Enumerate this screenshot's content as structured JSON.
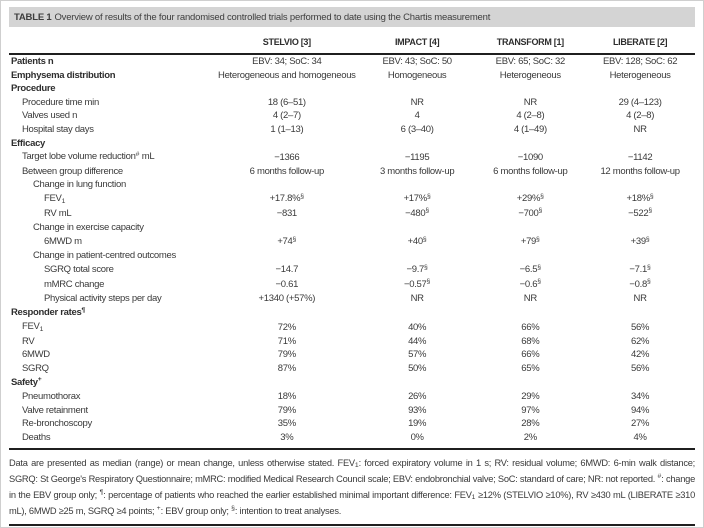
{
  "colors": {
    "page-bg": "#ffffff",
    "title-bar-bg": "#d4d4d4",
    "text": "#3a3a3a",
    "rule": "#1f1f1f"
  },
  "table": {
    "title_prefix": "TABLE 1",
    "title_rest": "Overview of results of the four randomised controlled trials performed to date using the Chartis measurement",
    "columns": [
      "STELVIO [3]",
      "IMPACT [4]",
      "TRANSFORM [1]",
      "LIBERATE [2]"
    ],
    "rows": [
      {
        "label": "Patients n",
        "level": 0,
        "bold": true,
        "values": [
          "EBV: 34; SoC: 34",
          "EBV: 43; SoC: 50",
          "EBV: 65; SoC: 32",
          "EBV: 128; SoC: 62"
        ]
      },
      {
        "label": "Emphysema distribution",
        "level": 0,
        "bold": true,
        "values": [
          "Heterogeneous and homogeneous",
          "Homogeneous",
          "Heterogeneous",
          "Heterogeneous"
        ]
      },
      {
        "label": "Procedure",
        "level": 0,
        "bold": true,
        "values": [
          "",
          "",
          "",
          ""
        ]
      },
      {
        "label": "Procedure time min",
        "level": 1,
        "bold": false,
        "values": [
          "18 (6–51)",
          "NR",
          "NR",
          "29 (4–123)"
        ]
      },
      {
        "label": "Valves used n",
        "level": 1,
        "bold": false,
        "values": [
          "4 (2–7)",
          "4",
          "4 (2–8)",
          "4 (2–8)"
        ]
      },
      {
        "label": "Hospital stay days",
        "level": 1,
        "bold": false,
        "values": [
          "1 (1–13)",
          "6 (3–40)",
          "4 (1–49)",
          "NR"
        ]
      },
      {
        "label": "Efficacy",
        "level": 0,
        "bold": true,
        "values": [
          "",
          "",
          "",
          ""
        ]
      },
      {
        "label": "Target lobe volume reduction^# mL",
        "level": 1,
        "bold": false,
        "values": [
          "−1366",
          "−1195",
          "−1090",
          "−1142"
        ]
      },
      {
        "label": "Between group difference",
        "level": 1,
        "bold": false,
        "values": [
          "6 months follow-up",
          "3 months follow-up",
          "6 months follow-up",
          "12 months follow-up"
        ]
      },
      {
        "label": "Change in lung function",
        "level": 2,
        "bold": false,
        "values": [
          "",
          "",
          "",
          ""
        ]
      },
      {
        "label": "FEV~1",
        "level": 3,
        "bold": false,
        "values": [
          "+17.8%^§",
          "+17%^§",
          "+29%^§",
          "+18%^§"
        ]
      },
      {
        "label": "RV mL",
        "level": 3,
        "bold": false,
        "values": [
          "−831",
          "−480^§",
          "−700^§",
          "−522^§"
        ]
      },
      {
        "label": "Change in exercise capacity",
        "level": 2,
        "bold": false,
        "values": [
          "",
          "",
          "",
          ""
        ]
      },
      {
        "label": "6MWD m",
        "level": 3,
        "bold": false,
        "values": [
          "+74^§",
          "+40^§",
          "+79^§",
          "+39^§"
        ]
      },
      {
        "label": "Change in patient-centred outcomes",
        "level": 2,
        "bold": false,
        "values": [
          "",
          "",
          "",
          ""
        ]
      },
      {
        "label": "SGRQ total score",
        "level": 3,
        "bold": false,
        "values": [
          "−14.7",
          "−9.7^§",
          "−6.5^§",
          "−7.1^§"
        ]
      },
      {
        "label": "mMRC change",
        "level": 3,
        "bold": false,
        "values": [
          "−0.61",
          "−0.57^§",
          "−0.6^§",
          "−0.8^§"
        ]
      },
      {
        "label": "Physical activity steps per day",
        "level": 3,
        "bold": false,
        "values": [
          "+1340 (+57%)",
          "NR",
          "NR",
          "NR"
        ]
      },
      {
        "label": "Responder rates^¶",
        "level": 0,
        "bold": true,
        "values": [
          "",
          "",
          "",
          ""
        ]
      },
      {
        "label": "FEV~1",
        "level": 1,
        "bold": false,
        "values": [
          "72%",
          "40%",
          "66%",
          "56%"
        ]
      },
      {
        "label": "RV",
        "level": 1,
        "bold": false,
        "values": [
          "71%",
          "44%",
          "68%",
          "62%"
        ]
      },
      {
        "label": "6MWD",
        "level": 1,
        "bold": false,
        "values": [
          "79%",
          "57%",
          "66%",
          "42%"
        ]
      },
      {
        "label": "SGRQ",
        "level": 1,
        "bold": false,
        "values": [
          "87%",
          "50%",
          "65%",
          "56%"
        ]
      },
      {
        "label": "Safety^+",
        "level": 0,
        "bold": true,
        "values": [
          "",
          "",
          "",
          ""
        ]
      },
      {
        "label": "Pneumothorax",
        "level": 1,
        "bold": false,
        "values": [
          "18%",
          "26%",
          "29%",
          "34%"
        ]
      },
      {
        "label": "Valve retainment",
        "level": 1,
        "bold": false,
        "values": [
          "79%",
          "93%",
          "97%",
          "94%"
        ]
      },
      {
        "label": "Re-bronchoscopy",
        "level": 1,
        "bold": false,
        "values": [
          "35%",
          "19%",
          "28%",
          "27%"
        ]
      },
      {
        "label": "Deaths",
        "level": 1,
        "bold": false,
        "values": [
          "3%",
          "0%",
          "2%",
          "4%"
        ]
      }
    ],
    "footnote": "Data are presented as median (range) or mean change, unless otherwise stated. FEV~1: forced expiratory volume in 1 s; RV: residual volume; 6MWD: 6-min walk distance; SGRQ: St George's Respiratory Questionnaire; mMRC: modified Medical Research Council scale; EBV: endobronchial valve; SoC: standard of care; NR: not reported. ^#: change in the EBV group only; ^¶: percentage of patients who reached the earlier established minimal important difference: FEV~1 ≥12% (STELVIO ≥10%), RV ≥430 mL (LIBERATE ≥310 mL), 6MWD ≥25 m, SGRQ ≥4 points; ^+: EBV group only; ^§: intention to treat analyses."
  }
}
